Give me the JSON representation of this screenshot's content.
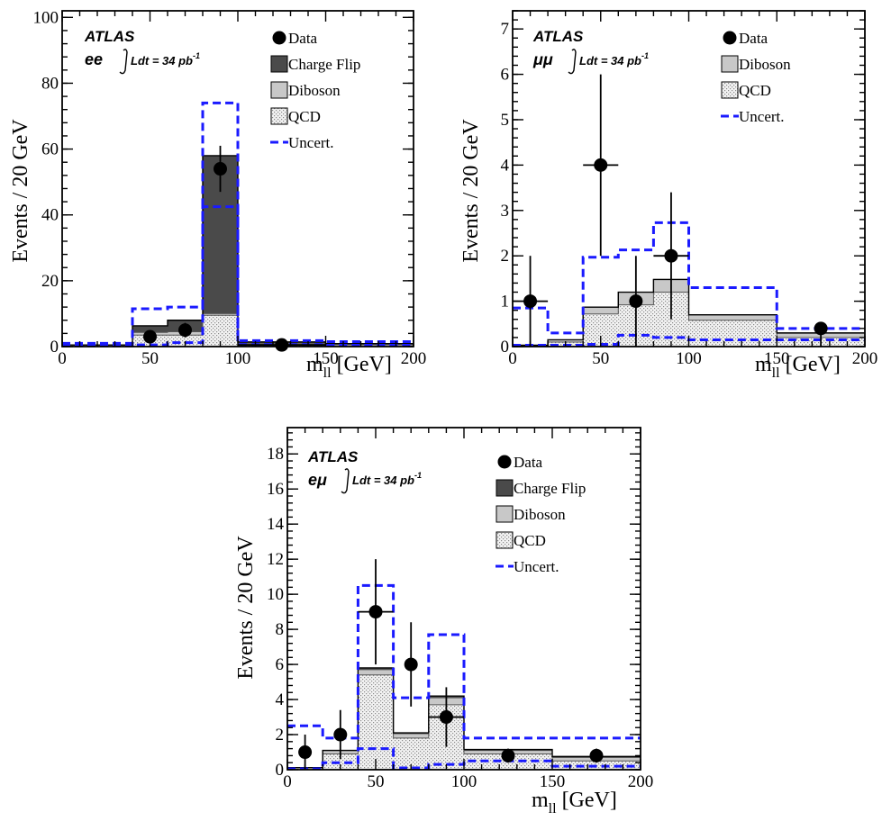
{
  "figure": {
    "experiment": "ATLAS",
    "luminosity": "Ldt = 34 pb",
    "luminosity_exp": "-1",
    "y_label": "Events / 20 GeV",
    "x_label": "m",
    "x_label_sub": "ll",
    "x_label_unit": " [GeV]"
  },
  "legend_labels": {
    "data": "Data",
    "chargeflip": "Charge Flip",
    "diboson": "Diboson",
    "qcd": "QCD",
    "uncert": "Uncert."
  },
  "colors": {
    "chargeflip": "#4a4a4a",
    "diboson": "#c8c8c8",
    "qcd": "#e6e6e6",
    "uncert": "#1a1aff",
    "data": "#000000"
  },
  "chart_data": [
    {
      "type": "bar",
      "channel": "ee",
      "xlim": [
        0,
        200
      ],
      "ylim": [
        0,
        102
      ],
      "x_ticks": [
        0,
        50,
        100,
        150,
        200
      ],
      "y_ticks": [
        0,
        20,
        40,
        60,
        80,
        100
      ],
      "bin_edges": [
        0,
        20,
        40,
        60,
        80,
        100,
        150,
        200
      ],
      "legend": [
        "data",
        "chargeflip",
        "diboson",
        "qcd",
        "uncert"
      ],
      "stack": {
        "qcd": [
          0.5,
          0.5,
          3.5,
          3.5,
          9.5,
          0.8,
          0.5
        ],
        "diboson": [
          0,
          0,
          0.8,
          1.0,
          0.5,
          0.3,
          0.2
        ],
        "chargeflip": [
          0,
          0,
          2.0,
          3.5,
          48,
          0.3,
          0.2
        ]
      },
      "uncert_up": [
        1.0,
        1.0,
        11.5,
        12.0,
        74,
        1.8,
        1.5
      ],
      "uncert_down": [
        0.2,
        0.2,
        0.5,
        1.2,
        42.5,
        0.6,
        0.4
      ],
      "data": [
        {
          "x": 50,
          "y": 3,
          "err_low": 1.7,
          "err_high": 1.7
        },
        {
          "x": 70,
          "y": 5,
          "err_low": 2.2,
          "err_high": 2.2
        },
        {
          "x": 90,
          "y": 54,
          "err_low": 7,
          "err_high": 7
        },
        {
          "x": 125,
          "y": 0.5,
          "err_low": 0.5,
          "err_high": 1.0,
          "xerr": 25
        }
      ]
    },
    {
      "type": "bar",
      "channel": "μμ",
      "xlim": [
        0,
        200
      ],
      "ylim": [
        0,
        7.4
      ],
      "x_ticks": [
        0,
        50,
        100,
        150,
        200
      ],
      "y_ticks": [
        0,
        1,
        2,
        3,
        4,
        5,
        6,
        7
      ],
      "bin_edges": [
        0,
        20,
        40,
        60,
        80,
        100,
        150,
        200
      ],
      "legend": [
        "data",
        "diboson",
        "qcd",
        "uncert"
      ],
      "stack": {
        "qcd": [
          0.02,
          0.1,
          0.72,
          0.92,
          1.2,
          0.58,
          0.2
        ],
        "diboson": [
          0.01,
          0.05,
          0.15,
          0.28,
          0.28,
          0.12,
          0.1
        ],
        "chargeflip": [
          0,
          0,
          0,
          0,
          0,
          0,
          0
        ]
      },
      "uncert_up": [
        0.85,
        0.3,
        1.97,
        2.13,
        2.73,
        1.3,
        0.4
      ],
      "uncert_down": [
        0.03,
        0.03,
        0.05,
        0.25,
        0.2,
        0.15,
        0.15
      ],
      "data": [
        {
          "x": 10,
          "y": 1,
          "err_low": 1,
          "err_high": 1,
          "xerr": 10
        },
        {
          "x": 50,
          "y": 4,
          "err_low": 2,
          "err_high": 2,
          "xerr": 10
        },
        {
          "x": 70,
          "y": 1,
          "err_low": 1,
          "err_high": 1
        },
        {
          "x": 90,
          "y": 2,
          "err_low": 1.4,
          "err_high": 1.4,
          "xerr": 10
        },
        {
          "x": 175,
          "y": 0.4,
          "err_low": 0.4,
          "err_high": 0
        }
      ]
    },
    {
      "type": "bar",
      "channel": "eμ",
      "xlim": [
        0,
        200
      ],
      "ylim": [
        0,
        19.5
      ],
      "x_ticks": [
        0,
        50,
        100,
        150,
        200
      ],
      "y_ticks": [
        0,
        2,
        4,
        6,
        8,
        10,
        12,
        14,
        16,
        18
      ],
      "bin_edges": [
        0,
        20,
        40,
        60,
        80,
        100,
        150,
        200
      ],
      "legend": [
        "data",
        "chargeflip",
        "diboson",
        "qcd",
        "uncert"
      ],
      "stack": {
        "qcd": [
          0.1,
          0.9,
          5.4,
          1.8,
          3.7,
          0.9,
          0.5
        ],
        "diboson": [
          0.02,
          0.2,
          0.3,
          0.25,
          0.4,
          0.2,
          0.2
        ],
        "chargeflip": [
          0,
          0,
          0.1,
          0.05,
          0.1,
          0.05,
          0.05
        ]
      },
      "uncert_up": [
        2.5,
        1.8,
        10.5,
        4.1,
        7.7,
        1.8,
        1.8
      ],
      "uncert_down": [
        0.05,
        0.4,
        1.2,
        0.1,
        0.3,
        0.5,
        0.2
      ],
      "data": [
        {
          "x": 10,
          "y": 1,
          "err_low": 1,
          "err_high": 1
        },
        {
          "x": 30,
          "y": 2,
          "err_low": 1.4,
          "err_high": 1.4
        },
        {
          "x": 50,
          "y": 9,
          "err_low": 3,
          "err_high": 3,
          "xerr": 10
        },
        {
          "x": 70,
          "y": 6,
          "err_low": 2.4,
          "err_high": 2.4
        },
        {
          "x": 90,
          "y": 3,
          "err_low": 1.7,
          "err_high": 1.7,
          "xerr": 10
        },
        {
          "x": 125,
          "y": 0.8,
          "err_low": 0.4,
          "err_high": 0.4
        },
        {
          "x": 175,
          "y": 0.8,
          "err_low": 0.4,
          "err_high": 0.4
        }
      ]
    }
  ]
}
